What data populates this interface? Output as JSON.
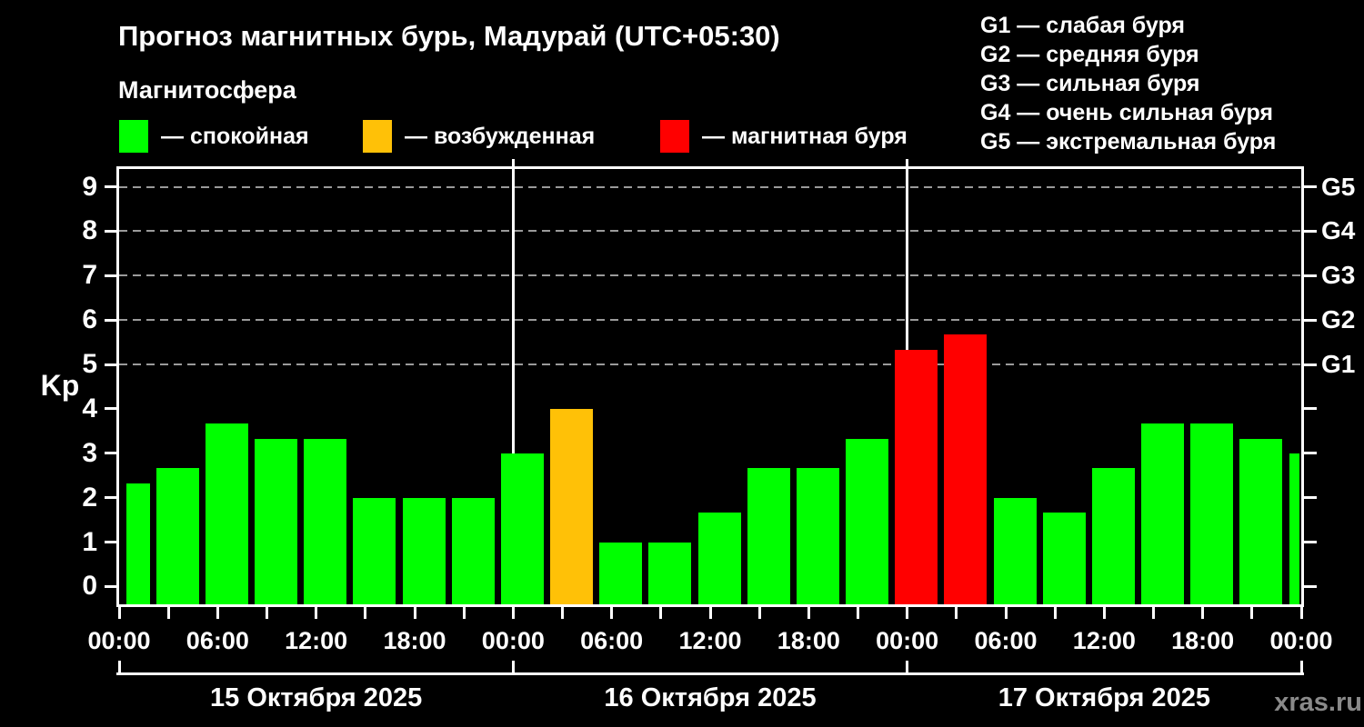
{
  "title": "Прогноз магнитных бурь, Мадурай (UTC+05:30)",
  "subtitle": "Магнитосфера",
  "watermark": "xras.ru",
  "colors": {
    "background": "#000000",
    "quiet": "#00ff00",
    "excited": "#ffc107",
    "storm": "#ff0000",
    "grid": "#9a9a9a",
    "axis": "#ffffff",
    "watermark": "#8a8a8a"
  },
  "legend": [
    {
      "status": "quiet",
      "label": "— спокойная"
    },
    {
      "status": "excited",
      "label": "— возбужденная"
    },
    {
      "status": "storm",
      "label": "— магнитная буря"
    }
  ],
  "g_legend": [
    "G1 — слабая буря",
    "G2 — средняя буря",
    "G3 — сильная буря",
    "G4 — очень сильная буря",
    "G5 — экстремальная буря"
  ],
  "chart_data": {
    "type": "bar",
    "ylabel": "Kp",
    "ylim": [
      0,
      9
    ],
    "yticks": [
      0,
      1,
      2,
      3,
      4,
      5,
      6,
      7,
      8,
      9
    ],
    "g_levels": [
      {
        "label": "G1",
        "kp": 5
      },
      {
        "label": "G2",
        "kp": 6
      },
      {
        "label": "G3",
        "kp": 7
      },
      {
        "label": "G4",
        "kp": 8
      },
      {
        "label": "G5",
        "kp": 9
      }
    ],
    "grid": "dashed horizontal lines at Kp 5–9 only",
    "x_hours_range": [
      0,
      72
    ],
    "bar_interval_hours": 3,
    "time_tick_labels": [
      "00:00",
      "06:00",
      "12:00",
      "18:00",
      "00:00",
      "06:00",
      "12:00",
      "18:00",
      "00:00",
      "06:00",
      "12:00",
      "18:00",
      "00:00"
    ],
    "day_labels": [
      "15 Октября 2025",
      "16 Октября 2025",
      "17 Октября 2025"
    ],
    "day_boundaries_hours": [
      0,
      24,
      48,
      72
    ],
    "bars": [
      {
        "h": 0,
        "kp": 2.33,
        "status": "quiet"
      },
      {
        "h": 3,
        "kp": 2.67,
        "status": "quiet"
      },
      {
        "h": 6,
        "kp": 3.67,
        "status": "quiet"
      },
      {
        "h": 9,
        "kp": 3.33,
        "status": "quiet"
      },
      {
        "h": 12,
        "kp": 3.33,
        "status": "quiet"
      },
      {
        "h": 15,
        "kp": 2.0,
        "status": "quiet"
      },
      {
        "h": 18,
        "kp": 2.0,
        "status": "quiet"
      },
      {
        "h": 21,
        "kp": 2.0,
        "status": "quiet"
      },
      {
        "h": 24,
        "kp": 3.0,
        "status": "quiet"
      },
      {
        "h": 27,
        "kp": 4.0,
        "status": "excited"
      },
      {
        "h": 30,
        "kp": 1.0,
        "status": "quiet"
      },
      {
        "h": 33,
        "kp": 1.0,
        "status": "quiet"
      },
      {
        "h": 36,
        "kp": 1.67,
        "status": "quiet"
      },
      {
        "h": 39,
        "kp": 2.67,
        "status": "quiet"
      },
      {
        "h": 42,
        "kp": 2.67,
        "status": "quiet"
      },
      {
        "h": 45,
        "kp": 3.33,
        "status": "quiet"
      },
      {
        "h": 48,
        "kp": 5.33,
        "status": "storm"
      },
      {
        "h": 51,
        "kp": 5.67,
        "status": "storm"
      },
      {
        "h": 54,
        "kp": 2.0,
        "status": "quiet"
      },
      {
        "h": 57,
        "kp": 1.67,
        "status": "quiet"
      },
      {
        "h": 60,
        "kp": 2.67,
        "status": "quiet"
      },
      {
        "h": 63,
        "kp": 3.67,
        "status": "quiet"
      },
      {
        "h": 66,
        "kp": 3.67,
        "status": "quiet"
      },
      {
        "h": 69,
        "kp": 3.33,
        "status": "quiet"
      },
      {
        "h": 72,
        "kp": 3.0,
        "status": "quiet"
      }
    ]
  }
}
